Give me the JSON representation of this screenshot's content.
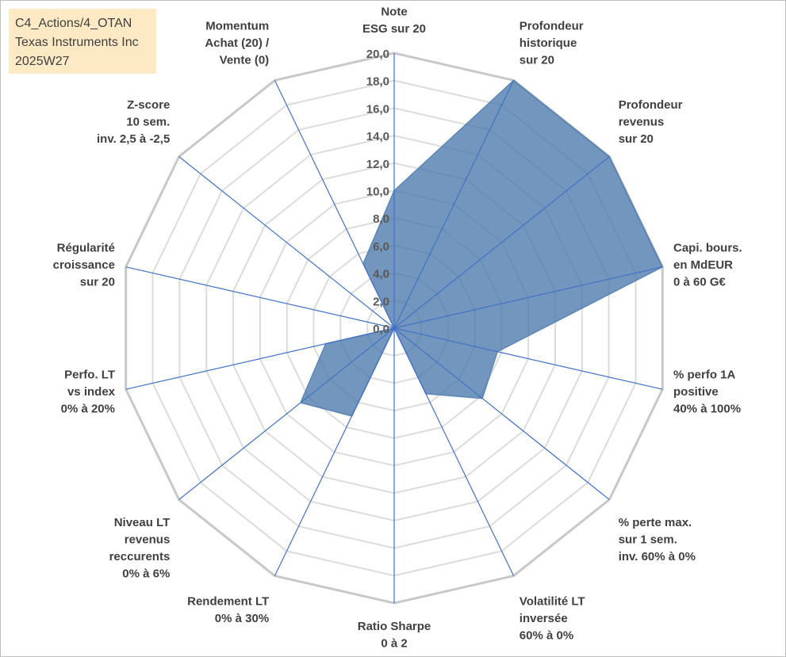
{
  "title_box": {
    "lines": [
      "C4_Actions/4_OTAN",
      "Texas Instruments Inc",
      "2025W27"
    ]
  },
  "colors": {
    "series_fill": "#4a78aa",
    "series_stroke": "#5b86b6",
    "axis_line": "#4472c4",
    "grid_outer": "#c8c8c8",
    "grid_inner": "#dcdcdc",
    "title_box_bg": "#fde9c4"
  },
  "chart_data": {
    "type": "radar",
    "rlim": [
      0,
      20
    ],
    "r_ticks": [
      "0,0",
      "2,0",
      "4,0",
      "6,0",
      "8,0",
      "10,0",
      "12,0",
      "14,0",
      "16,0",
      "18,0",
      "20,0"
    ],
    "grid": true,
    "legend": "none",
    "axes": [
      {
        "label": [
          "Note",
          "ESG sur 20"
        ],
        "value": 10.0
      },
      {
        "label": [
          "Profondeur",
          "historique",
          "sur 20"
        ],
        "value": 20.0
      },
      {
        "label": [
          "Profondeur",
          "revenus",
          "sur 20"
        ],
        "value": 20.0
      },
      {
        "label": [
          "Capi. bours.",
          "en MdEUR",
          "0 à 60 G€"
        ],
        "value": 20.0
      },
      {
        "label": [
          "% perfo 1A",
          "positive",
          "40% à 100%"
        ],
        "value": 7.7
      },
      {
        "label": [
          "% perte max.",
          "sur 1 sem.",
          "inv. 60% à 0%"
        ],
        "value": 8.2
      },
      {
        "label": [
          "Volatilité LT",
          "inversée",
          "60% à 0%"
        ],
        "value": 5.3
      },
      {
        "label": [
          "Ratio Sharpe",
          "0 à 2"
        ],
        "value": 0.0
      },
      {
        "label": [
          "Rendement LT",
          "0% à 30%"
        ],
        "value": 7.1
      },
      {
        "label": [
          "Niveau LT",
          "revenus",
          "reccurents",
          "0% à 6%"
        ],
        "value": 8.7
      },
      {
        "label": [
          "Perfo. LT",
          "vs index",
          "0% à 20%"
        ],
        "value": 5.1
      },
      {
        "label": [
          "Régularité",
          "croissance",
          "sur 20"
        ],
        "value": 0.0
      },
      {
        "label": [
          "Z-score",
          "10 sem.",
          "inv. 2,5 à -2,5"
        ],
        "value": 0.0
      },
      {
        "label": [
          "Momentum",
          "Achat (20) /",
          "Vente (0)"
        ],
        "value": 5.2
      }
    ]
  }
}
